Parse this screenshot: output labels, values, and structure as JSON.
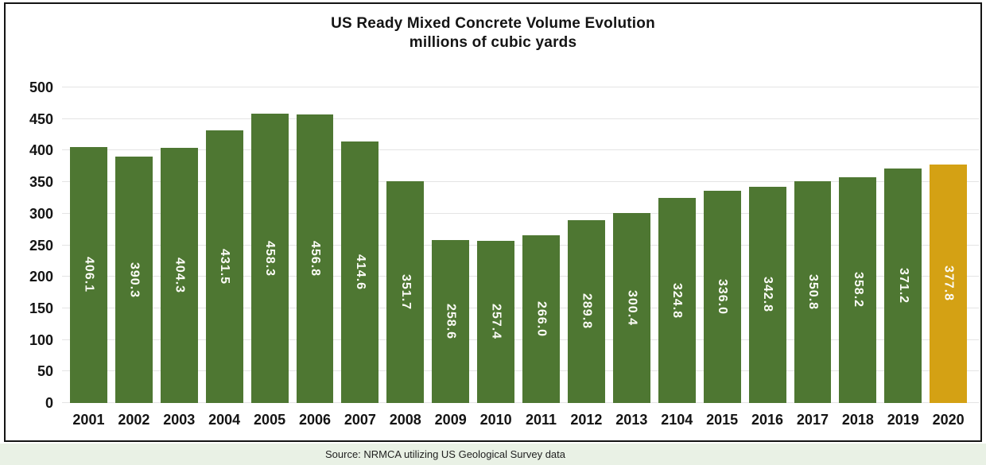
{
  "title": {
    "line1": "US Ready Mixed Concrete Volume Evolution",
    "line2": "millions of cubic yards"
  },
  "source": "Source: NRMCA utilizing US Geological Survey data",
  "colors": {
    "bar": "#4e7732",
    "highlight_bar": "#d4a114",
    "gridline": "#e4e4e4",
    "box_border": "#141414",
    "source_strip_bg": "#e9f1e5",
    "bar_label_text": "#fbfbf6"
  },
  "chart_data": {
    "type": "bar",
    "title": "US Ready Mixed Concrete Volume Evolution",
    "subtitle": "millions of cubic yards",
    "xlabel": "",
    "ylabel": "",
    "ylim": [
      0,
      500
    ],
    "y_ticks": [
      0,
      50,
      100,
      150,
      200,
      250,
      300,
      350,
      400,
      450,
      500
    ],
    "grid": "horizontal",
    "legend": "none",
    "categories": [
      "2001",
      "2002",
      "2003",
      "2004",
      "2005",
      "2006",
      "2007",
      "2008",
      "2009",
      "2010",
      "2011",
      "2012",
      "2013",
      "2104",
      "2015",
      "2016",
      "2017",
      "2018",
      "2019",
      "2020"
    ],
    "values": [
      406.1,
      390.3,
      404.3,
      431.5,
      458.3,
      456.8,
      414.6,
      351.7,
      258.6,
      257.4,
      266.0,
      289.8,
      300.4,
      324.8,
      336.0,
      342.8,
      350.8,
      358.2,
      371.2,
      377.8
    ],
    "value_labels": [
      "406.1",
      "390.3",
      "404.3",
      "431.5",
      "458.3",
      "456.8",
      "414.6",
      "351.7",
      "258.6",
      "257.4",
      "266.0",
      "289.8",
      "300.4",
      "324.8",
      "336.0",
      "342.8",
      "350.8",
      "358.2",
      "371.2",
      "377.8"
    ],
    "highlight_category": "2020",
    "highlight_index": 19
  }
}
